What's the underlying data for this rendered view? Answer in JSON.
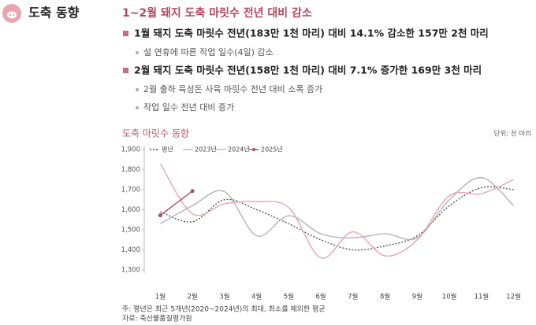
{
  "header": {
    "title": "도축 동향"
  },
  "headline": "1~2월 돼지 도축 마릿수 전년 대비 감소",
  "bullets": [
    {
      "text": "1월 돼지 도축 마릿수 전년(183만 1천 마리) 대비 14.1% 감소한 157만 2천 마리",
      "subs": [
        "설 연휴에 따른 작업 일수(4일) 감소"
      ]
    },
    {
      "text": "2월 돼지 도축 마릿수 전년(158만 1천 마리) 대비 7.1% 증가한 169만 3천 마리",
      "subs": [
        "2월 출하 육성돈 사육 마릿수 전년 대비 소폭 증가",
        "작업 일수 전년 대비 증가"
      ]
    }
  ],
  "chart_data": {
    "type": "line",
    "title": "도축 마릿수 동향",
    "unit_label": "단위: 천 마리",
    "categories": [
      "1월",
      "2월",
      "3월",
      "4월",
      "5월",
      "6월",
      "7월",
      "8월",
      "9월",
      "10월",
      "11월",
      "12월"
    ],
    "series": [
      {
        "name": "평년",
        "color": "#555555",
        "style": "dotted",
        "values": [
          1590,
          1540,
          1650,
          1600,
          1530,
          1450,
          1400,
          1420,
          1470,
          1620,
          1710,
          1700
        ]
      },
      {
        "name": "2023년",
        "color": "#b3b3b3",
        "style": "solid",
        "values": [
          1530,
          1620,
          1690,
          1470,
          1570,
          1480,
          1460,
          1480,
          1460,
          1650,
          1760,
          1620
        ]
      },
      {
        "name": "2024년",
        "color": "#e8a3b0",
        "style": "solid",
        "values": [
          1830,
          1580,
          1630,
          1640,
          1610,
          1360,
          1490,
          1370,
          1450,
          1670,
          1680,
          1750
        ]
      },
      {
        "name": "2025년",
        "color": "#b5485b",
        "style": "solid",
        "markers": true,
        "values": [
          1572,
          1693,
          null,
          null,
          null,
          null,
          null,
          null,
          null,
          null,
          null,
          null
        ]
      }
    ],
    "ylim": [
      1300,
      1900
    ],
    "yticks": [
      {
        "value": 1300,
        "label": "1,300"
      },
      {
        "value": 1400,
        "label": "1,400"
      },
      {
        "value": 1500,
        "label": "1,500"
      },
      {
        "value": 1600,
        "label": "1,600"
      },
      {
        "value": 1700,
        "label": "1,700"
      },
      {
        "value": 1800,
        "label": "1,800"
      },
      {
        "value": 1900,
        "label": "1,900"
      }
    ],
    "grid": false
  },
  "notes": [
    "주: 평년은 최근 5개년(2020~2024년)의 최대, 최소를 제외한 평균",
    "자료: 축산물품질평가원"
  ]
}
